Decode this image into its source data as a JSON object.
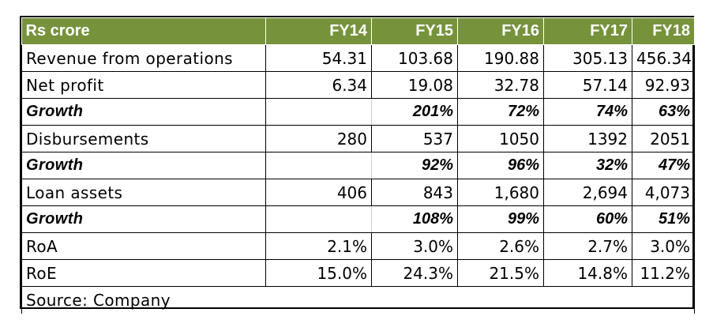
{
  "table": {
    "headers": [
      "Rs crore",
      "FY14",
      "FY15",
      "FY16",
      "FY17",
      "FY18"
    ],
    "rows": [
      {
        "label": "Revenue from operations",
        "values": [
          "54.31",
          "103.68",
          "190.88",
          "305.13",
          "456.34"
        ],
        "style": "normal"
      },
      {
        "label": "Net profit",
        "values": [
          "6.34",
          "19.08",
          "32.78",
          "57.14",
          "92.93"
        ],
        "style": "normal"
      },
      {
        "label": "Growth",
        "values": [
          "",
          "201%",
          "72%",
          "74%",
          "63%"
        ],
        "style": "growth"
      },
      {
        "label": "Disbursements",
        "values": [
          "280",
          "537",
          "1050",
          "1392",
          "2051"
        ],
        "style": "normal"
      },
      {
        "label": "Growth",
        "values": [
          "",
          "92%",
          "96%",
          "32%",
          "47%"
        ],
        "style": "growth"
      },
      {
        "label": "Loan assets",
        "values": [
          "406",
          "843",
          "1,680",
          "2,694",
          "4,073"
        ],
        "style": "normal"
      },
      {
        "label": "Growth",
        "values": [
          "",
          "108%",
          "99%",
          "60%",
          "51%"
        ],
        "style": "growth"
      },
      {
        "label": "RoA",
        "values": [
          "2.1%",
          "3.0%",
          "2.6%",
          "2.7%",
          "3.0%"
        ],
        "style": "normal"
      },
      {
        "label": "RoE",
        "values": [
          "15.0%",
          "24.3%",
          "21.5%",
          "14.8%",
          "11.2%"
        ],
        "style": "normal"
      }
    ],
    "source": "Source: Company"
  },
  "colors": {
    "header_bg": "#76933c",
    "header_text": "#ffffff"
  }
}
